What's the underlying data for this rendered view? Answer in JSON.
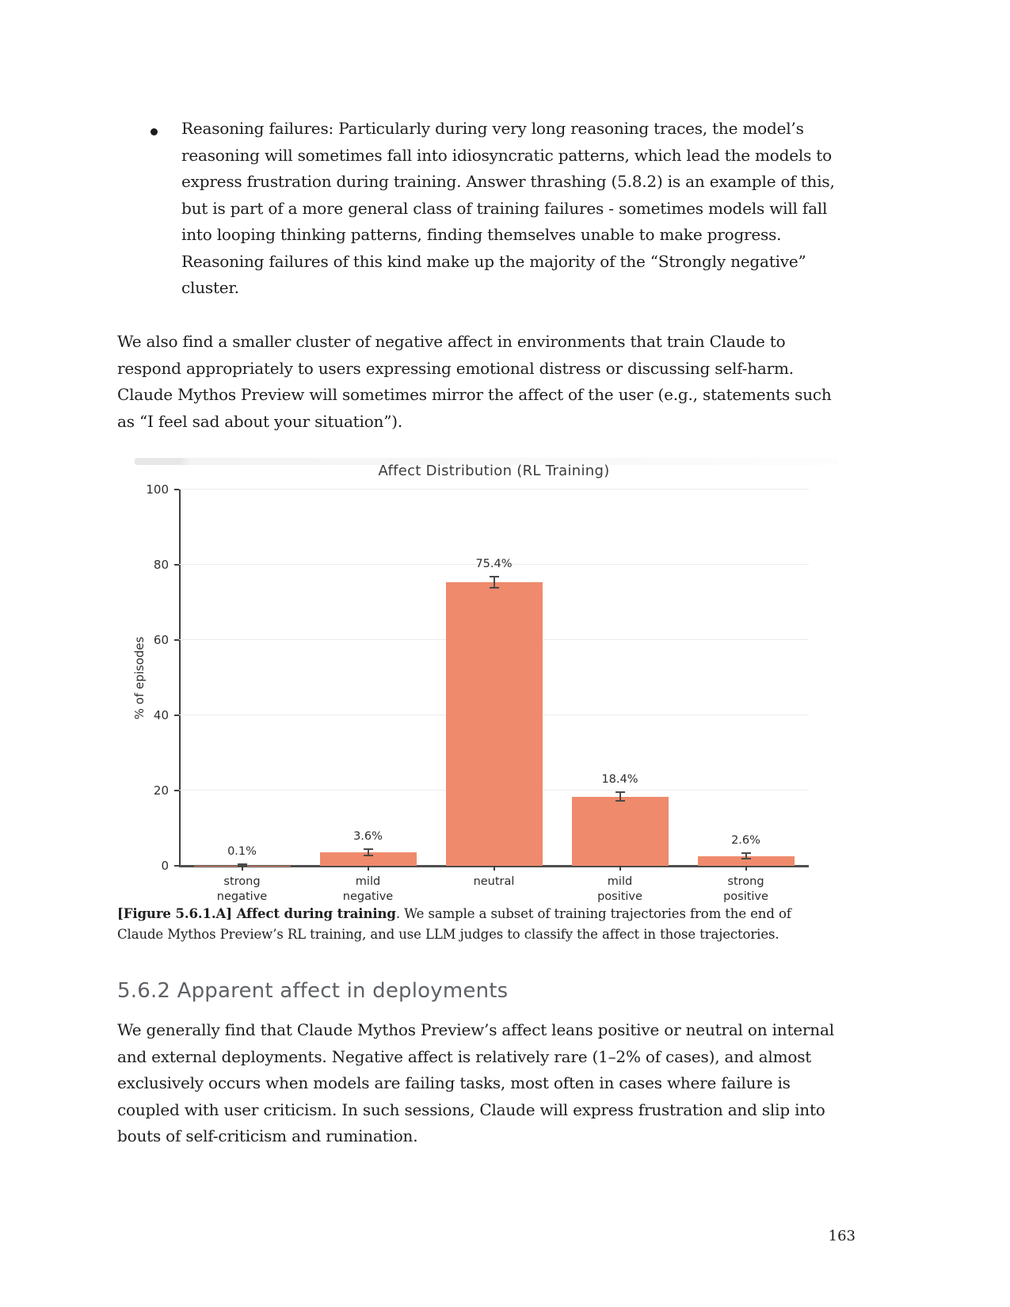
{
  "document": {
    "bullet_item": "Reasoning failures: Particularly during very long reasoning traces, the model’s reasoning will sometimes fall into idiosyncratic patterns, which lead the models to express frustration during training. Answer thrashing (5.8.2) is an example of this, but is part of a more general class of training failures - sometimes models will fall into looping thinking patterns, finding themselves unable to make progress. Reasoning failures of this kind make up the majority of the “Strongly negative” cluster.",
    "paragraph_1": "We also find a smaller cluster of negative affect in environments that train Claude to respond appropriately to users expressing emotional distress or discussing self-harm. Claude Mythos Preview will sometimes mirror the affect of the user (e.g., statements such as “I feel sad about your situation”).",
    "figure_caption": {
      "bold": "[Figure 5.6.1.A] Affect during training",
      "rest": ". We sample a subset of training trajectories from the end of Claude Mythos Preview’s RL training, and use LLM judges to classify the affect in those trajectories."
    },
    "section_heading": "5.6.2 Apparent affect in deployments",
    "paragraph_2": "We generally find that Claude Mythos Preview’s affect leans positive or neutral on internal and external deployments. Negative affect is relatively rare (1–2% of cases), and almost exclusively occurs when models are failing tasks, most often in cases where failure is coupled with user criticism. In such sessions, Claude will express frustration and slip into bouts of self-criticism and rumination.",
    "page_number": "163"
  },
  "chart_data": {
    "type": "bar",
    "title": "Affect Distribution (RL Training)",
    "xlabel": "",
    "ylabel": "% of episodes",
    "ylim": [
      0,
      100
    ],
    "yticks": [
      0,
      20,
      40,
      60,
      80,
      100
    ],
    "grid": true,
    "legend": "none",
    "categories": [
      "strong negative",
      "mild negative",
      "neutral",
      "mild positive",
      "strong positive"
    ],
    "category_lines": [
      [
        "strong",
        "negative"
      ],
      [
        "mild",
        "negative"
      ],
      [
        "neutral"
      ],
      [
        "mild",
        "positive"
      ],
      [
        "strong",
        "positive"
      ]
    ],
    "values": [
      0.1,
      3.6,
      75.4,
      18.4,
      2.6
    ],
    "value_labels": [
      "0.1%",
      "3.6%",
      "75.4%",
      "18.4%",
      "2.6%"
    ],
    "errors": [
      0.3,
      0.8,
      1.4,
      1.2,
      0.8
    ],
    "bar_color": "#EF8A6C",
    "error_color": "#4a4a4a",
    "axis_color": "#4d4d4d",
    "grid_color": "#ececec"
  }
}
